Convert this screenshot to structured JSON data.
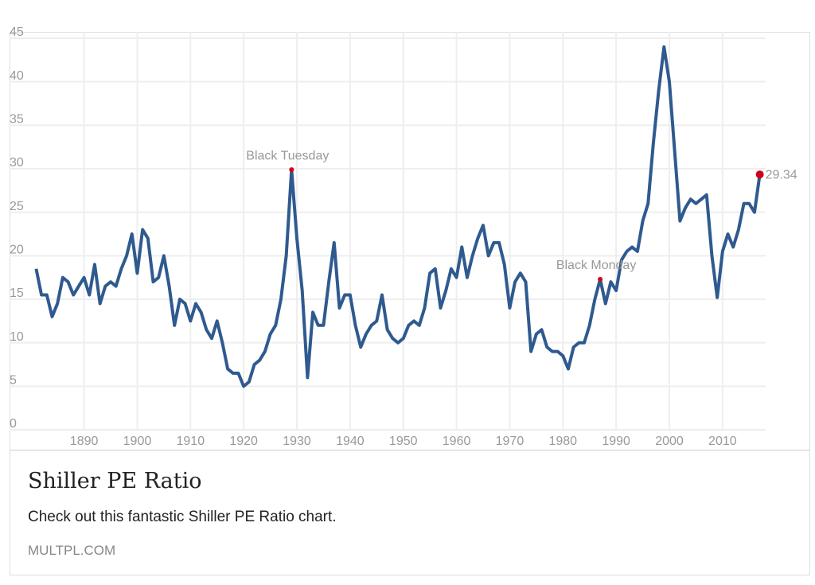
{
  "chart_data": {
    "type": "line",
    "x": [
      1881,
      1882,
      1883,
      1884,
      1885,
      1886,
      1887,
      1888,
      1889,
      1890,
      1891,
      1892,
      1893,
      1894,
      1895,
      1896,
      1897,
      1898,
      1899,
      1900,
      1901,
      1902,
      1903,
      1904,
      1905,
      1906,
      1907,
      1908,
      1909,
      1910,
      1911,
      1912,
      1913,
      1914,
      1915,
      1916,
      1917,
      1918,
      1919,
      1920,
      1921,
      1922,
      1923,
      1924,
      1925,
      1926,
      1927,
      1928,
      1929,
      1930,
      1931,
      1932,
      1933,
      1934,
      1935,
      1936,
      1937,
      1938,
      1939,
      1940,
      1941,
      1942,
      1943,
      1944,
      1945,
      1946,
      1947,
      1948,
      1949,
      1950,
      1951,
      1952,
      1953,
      1954,
      1955,
      1956,
      1957,
      1958,
      1959,
      1960,
      1961,
      1962,
      1963,
      1964,
      1965,
      1966,
      1967,
      1968,
      1969,
      1970,
      1971,
      1972,
      1973,
      1974,
      1975,
      1976,
      1977,
      1978,
      1979,
      1980,
      1981,
      1982,
      1983,
      1984,
      1985,
      1986,
      1987,
      1988,
      1989,
      1990,
      1991,
      1992,
      1993,
      1994,
      1995,
      1996,
      1997,
      1998,
      1999,
      2000,
      2001,
      2002,
      2003,
      2004,
      2005,
      2006,
      2007,
      2008,
      2009,
      2010,
      2011,
      2012,
      2013,
      2014,
      2015,
      2016,
      2017
    ],
    "series": [
      {
        "name": "Shiller PE Ratio",
        "color": "#2f5a8f",
        "values": [
          18.5,
          15.5,
          15.5,
          13,
          14.5,
          17.5,
          17,
          15.5,
          16.5,
          17.5,
          15.5,
          19,
          14.5,
          16.5,
          17,
          16.5,
          18.5,
          20,
          22.5,
          18,
          23,
          22,
          17,
          17.5,
          20,
          16.5,
          12,
          15,
          14.5,
          12.5,
          14.5,
          13.5,
          11.5,
          10.5,
          12.5,
          10,
          7,
          6.5,
          6.5,
          5,
          5.5,
          7.5,
          8,
          9,
          11,
          12,
          15,
          20,
          29.9,
          22,
          16,
          6,
          13.5,
          12,
          12,
          17,
          21.5,
          14,
          15.5,
          15.5,
          12,
          9.5,
          11,
          12,
          12.5,
          15.5,
          11.5,
          10.5,
          10,
          10.5,
          12,
          12.5,
          12,
          14,
          18,
          18.5,
          14,
          16,
          18.5,
          17.5,
          21,
          17.5,
          20,
          22,
          23.5,
          20,
          21.5,
          21.5,
          19,
          14,
          17,
          18,
          17,
          9,
          11,
          11.5,
          9.5,
          9,
          9,
          8.5,
          7,
          9.5,
          10,
          10,
          12,
          15,
          17.3,
          14.5,
          17,
          16,
          19.5,
          20.5,
          21,
          20.5,
          24,
          26,
          33,
          39,
          44,
          40,
          32,
          24,
          25.5,
          26.5,
          26,
          26.5,
          27,
          20,
          15.2,
          20.5,
          22.5,
          21,
          23,
          26,
          26,
          25,
          29.34
        ]
      }
    ],
    "annotations": [
      {
        "text": "Black Tuesday",
        "x": 1929,
        "value": 29.9
      },
      {
        "text": "Black Monday",
        "x": 1987,
        "value": 17.3
      },
      {
        "text": "29.34",
        "x": 2017,
        "value": 29.34
      }
    ],
    "marker_color": "#d0021b",
    "xlim": [
      1876,
      2018.1
    ],
    "ylim": [
      0,
      45
    ],
    "xticks": [
      1890,
      1900,
      1910,
      1920,
      1930,
      1940,
      1950,
      1960,
      1970,
      1980,
      1990,
      2000,
      2010
    ],
    "yticks": [
      0,
      5,
      10,
      15,
      20,
      25,
      30,
      35,
      40,
      45
    ],
    "grid": true
  },
  "card": {
    "title": "Shiller PE Ratio",
    "description": "Check out this fantastic Shiller PE Ratio chart.",
    "domain": "MULTPL.COM"
  }
}
